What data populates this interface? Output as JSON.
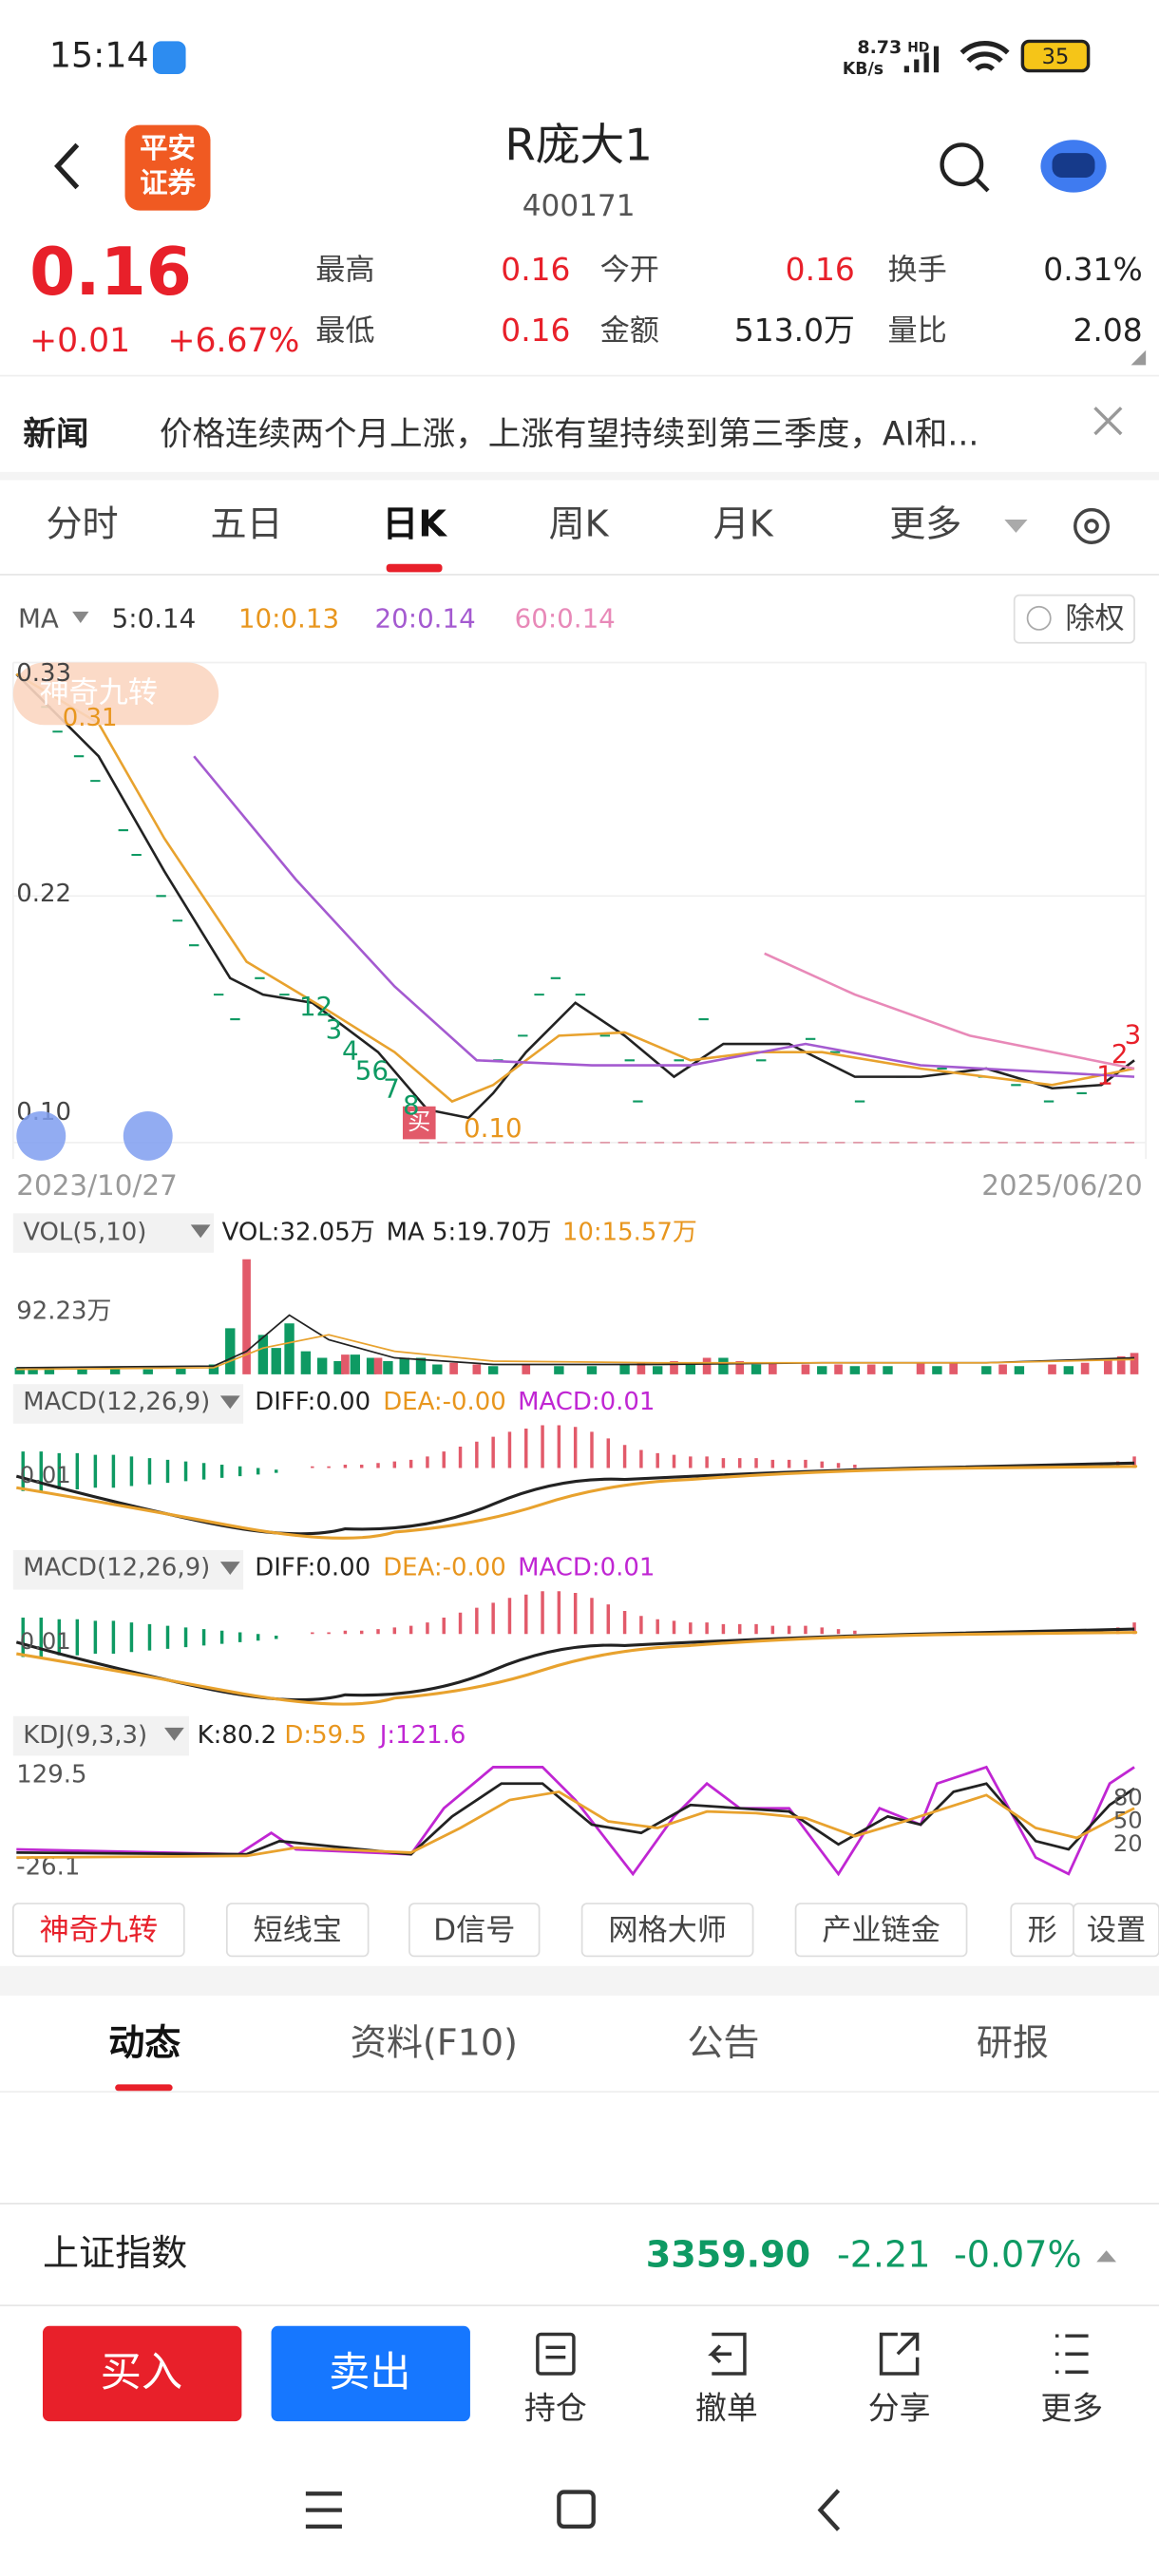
{
  "status_bar": {
    "time": "15:14",
    "net": "8.73",
    "net_unit": "KB/s",
    "net_type": "HD",
    "battery": "35"
  },
  "header": {
    "logo": [
      "平安",
      "证券"
    ],
    "title": "R庞大1",
    "code": "400171"
  },
  "quote": {
    "price": "0.16",
    "change": "+0.01",
    "pct": "+6.67%",
    "fields": [
      {
        "label": "最高",
        "value": "0.16"
      },
      {
        "label": "今开",
        "value": "0.16"
      },
      {
        "label": "换手",
        "value": "0.31%"
      },
      {
        "label": "最低",
        "value": "0.16"
      },
      {
        "label": "金额",
        "value": "513.0万"
      },
      {
        "label": "量比",
        "value": "2.08"
      }
    ]
  },
  "news": {
    "label": "新闻",
    "text": "价格连续两个月上涨，上涨有望持续到第三季度，AI和..."
  },
  "tabs": [
    "分时",
    "五日",
    "日K",
    "周K",
    "月K",
    "更多"
  ],
  "ma_legend": {
    "label": "MA",
    "items": [
      "5:0.14",
      "10:0.13",
      "20:0.14",
      "60:0.14"
    ],
    "button": "除权"
  },
  "kline": {
    "badge": "神奇九转",
    "high": "0.33",
    "high_mark": "0.31",
    "mid": "0.22",
    "low": "0.10",
    "low_mark": "0.10",
    "buy": "买",
    "start_date": "2023/10/27",
    "end_date": "2025/06/20",
    "nine_down": [
      "12",
      "3",
      "4",
      "56",
      "7",
      "8"
    ],
    "nine_up": [
      "1",
      "2",
      "3"
    ]
  },
  "vol": {
    "label": "VOL(5,10)",
    "vol": "VOL:32.05万",
    "ma5": "MA 5:19.70万",
    "ma10": "10:15.57万",
    "axis": "92.23万"
  },
  "macd": [
    {
      "label": "MACD(12,26,9)",
      "diff": "DIFF:0.00",
      "dea": "DEA:-0.00",
      "macd": "MACD:0.01",
      "axis": "0.01"
    },
    {
      "label": "MACD(12,26,9)",
      "diff": "DIFF:0.00",
      "dea": "DEA:-0.00",
      "macd": "MACD:0.01",
      "axis": "0.01"
    }
  ],
  "kdj": {
    "label": "KDJ(9,3,3)",
    "k": "K:80.2",
    "d": "D:59.5",
    "j": "J:121.6",
    "max": "129.5",
    "min": "-26.1",
    "levels": [
      "80",
      "50",
      "20"
    ]
  },
  "tools": [
    "神奇九转",
    "短线宝",
    "D信号",
    "网格大师",
    "产业链金",
    "形",
    "设置"
  ],
  "bottom_tabs": [
    "动态",
    "资料(F10)",
    "公告",
    "研报"
  ],
  "index": {
    "name": "上证指数",
    "value": "3359.90",
    "change": "-2.21",
    "pct": "-0.07%"
  },
  "actions": {
    "buy": "买入",
    "sell": "卖出",
    "items": [
      "持仓",
      "撤单",
      "分享",
      "更多"
    ]
  }
}
